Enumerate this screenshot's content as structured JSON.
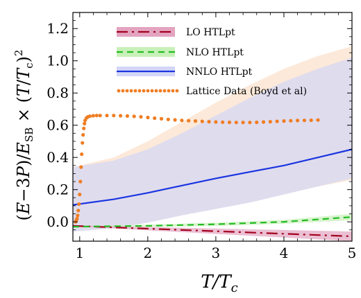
{
  "chart_data": {
    "type": "line",
    "xlabel": "T/T_c",
    "ylabel": "(E−3P)/E_SB × (T/T_c)^2",
    "xlim": [
      0.9,
      5.0
    ],
    "ylim": [
      -0.12,
      1.3
    ],
    "x_ticks": [
      "1",
      "2",
      "3",
      "4",
      "5"
    ],
    "y_ticks": [
      "0.0",
      "0.2",
      "0.4",
      "0.6",
      "0.8",
      "1.0",
      "1.2"
    ],
    "x_tick_values": [
      1,
      2,
      3,
      4,
      5
    ],
    "y_tick_values": [
      0.0,
      0.2,
      0.4,
      0.6,
      0.8,
      1.0,
      1.2
    ],
    "grid": false,
    "legend_position": "top-right",
    "series": [
      {
        "name": "LO HTLpt",
        "style": "dash-dot",
        "color": "#a3001e",
        "band_color": "#e3a4c0",
        "x": [
          0.9,
          5.0
        ],
        "center": [
          -0.025,
          -0.09
        ],
        "lower": [
          -0.028,
          -0.12
        ],
        "upper": [
          -0.022,
          -0.06
        ]
      },
      {
        "name": "NLO HTLpt",
        "style": "dashed",
        "color": "#22bb22",
        "band_color": "#c8f0b8",
        "x": [
          0.9,
          2.0,
          3.0,
          4.0,
          5.0
        ],
        "center": [
          -0.03,
          -0.025,
          -0.015,
          0.0,
          0.03
        ],
        "lower": [
          -0.035,
          -0.032,
          -0.025,
          -0.012,
          0.01
        ],
        "upper": [
          -0.025,
          -0.018,
          -0.005,
          0.012,
          0.05
        ]
      },
      {
        "name": "NNLO HTLpt",
        "style": "solid",
        "color": "#1a35e0",
        "band_color": "#d3d6f7",
        "x": [
          0.9,
          1.5,
          2.0,
          2.5,
          3.0,
          3.5,
          4.0,
          4.5,
          5.0
        ],
        "center": [
          0.105,
          0.14,
          0.18,
          0.225,
          0.27,
          0.31,
          0.35,
          0.4,
          0.45
        ],
        "lower": [
          -0.06,
          -0.04,
          -0.005,
          0.04,
          0.08,
          0.12,
          0.17,
          0.22,
          0.27
        ],
        "upper": [
          0.34,
          0.38,
          0.45,
          0.55,
          0.66,
          0.77,
          0.87,
          0.95,
          1.02
        ]
      },
      {
        "name": "Lattice Data (Boyd et al)",
        "style": "markers",
        "color": "#f07d22",
        "band_color": "#fbe2cc",
        "band_x": [
          0.9,
          1.5,
          2.0,
          2.5,
          3.0,
          3.5,
          4.0,
          4.5,
          5.0
        ],
        "band_lower": [
          -0.06,
          -0.04,
          -0.005,
          0.04,
          0.08,
          0.12,
          0.17,
          0.22,
          0.26
        ],
        "band_upper": [
          0.34,
          0.4,
          0.5,
          0.62,
          0.74,
          0.85,
          0.95,
          1.03,
          1.09
        ],
        "x": [
          0.94,
          0.95,
          0.96,
          0.97,
          0.98,
          0.99,
          1.0,
          1.01,
          1.02,
          1.03,
          1.04,
          1.05,
          1.06,
          1.07,
          1.08,
          1.1,
          1.12,
          1.15,
          1.2,
          1.25,
          1.3,
          1.4,
          1.5,
          1.6,
          1.7,
          1.8,
          1.9,
          2.0,
          2.1,
          2.2,
          2.3,
          2.4,
          2.5,
          2.6,
          2.7,
          2.8,
          2.9,
          3.0,
          3.1,
          3.2,
          3.3,
          3.4,
          3.5,
          3.6,
          3.7,
          3.8,
          3.9,
          4.0,
          4.1,
          4.2,
          4.3,
          4.4,
          4.5
        ],
        "y": [
          0.0,
          0.01,
          0.02,
          0.04,
          0.07,
          0.11,
          0.17,
          0.25,
          0.34,
          0.42,
          0.49,
          0.54,
          0.58,
          0.61,
          0.63,
          0.645,
          0.652,
          0.656,
          0.659,
          0.66,
          0.66,
          0.66,
          0.66,
          0.659,
          0.657,
          0.655,
          0.652,
          0.648,
          0.644,
          0.64,
          0.636,
          0.633,
          0.63,
          0.628,
          0.626,
          0.624,
          0.622,
          0.62,
          0.619,
          0.618,
          0.617,
          0.617,
          0.617,
          0.618,
          0.62,
          0.622,
          0.624,
          0.626,
          0.628,
          0.629,
          0.63,
          0.631,
          0.632
        ]
      }
    ]
  }
}
